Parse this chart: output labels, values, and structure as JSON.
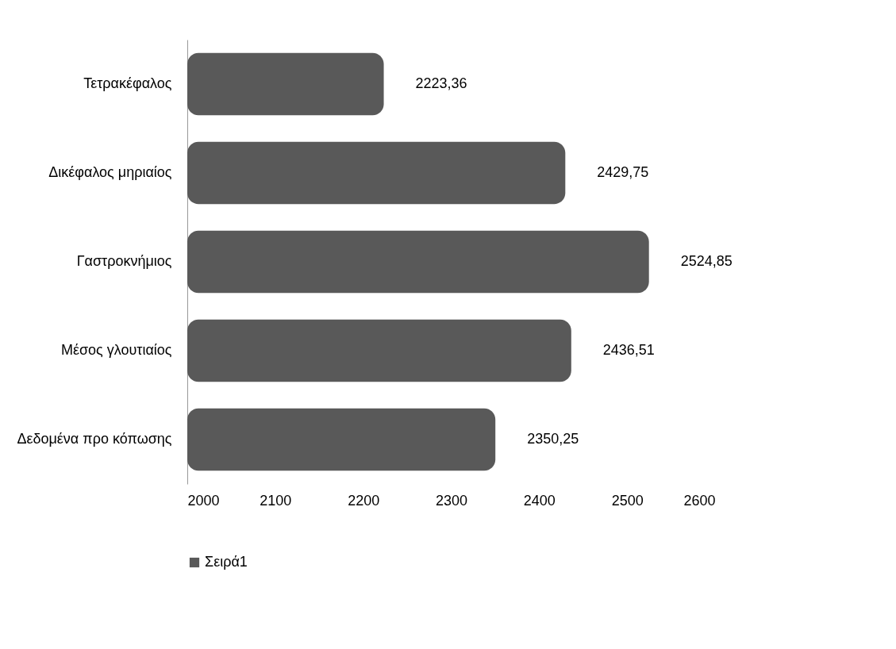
{
  "chart_data": {
    "type": "bar",
    "orientation": "horizontal",
    "categories": [
      "Τετρακέφαλος",
      "Δικέφαλος μηριαίος",
      "Γαστροκνήμιος",
      "Μέσος γλουτιαίος",
      "Δεδομένα προ κόπωσης"
    ],
    "series": [
      {
        "name": "Σειρά1",
        "color": "#595959",
        "values": [
          2223.36,
          2429.75,
          2524.85,
          2436.51,
          2350.25
        ],
        "value_labels": [
          "2223,36",
          "2429,75",
          "2524,85",
          "2436,51",
          "2350,25"
        ]
      }
    ],
    "xlim": [
      2000,
      2600
    ],
    "xticks": [
      2000,
      2100,
      2200,
      2300,
      2400,
      2500,
      2600
    ],
    "legend": "bottom",
    "grid": false
  }
}
